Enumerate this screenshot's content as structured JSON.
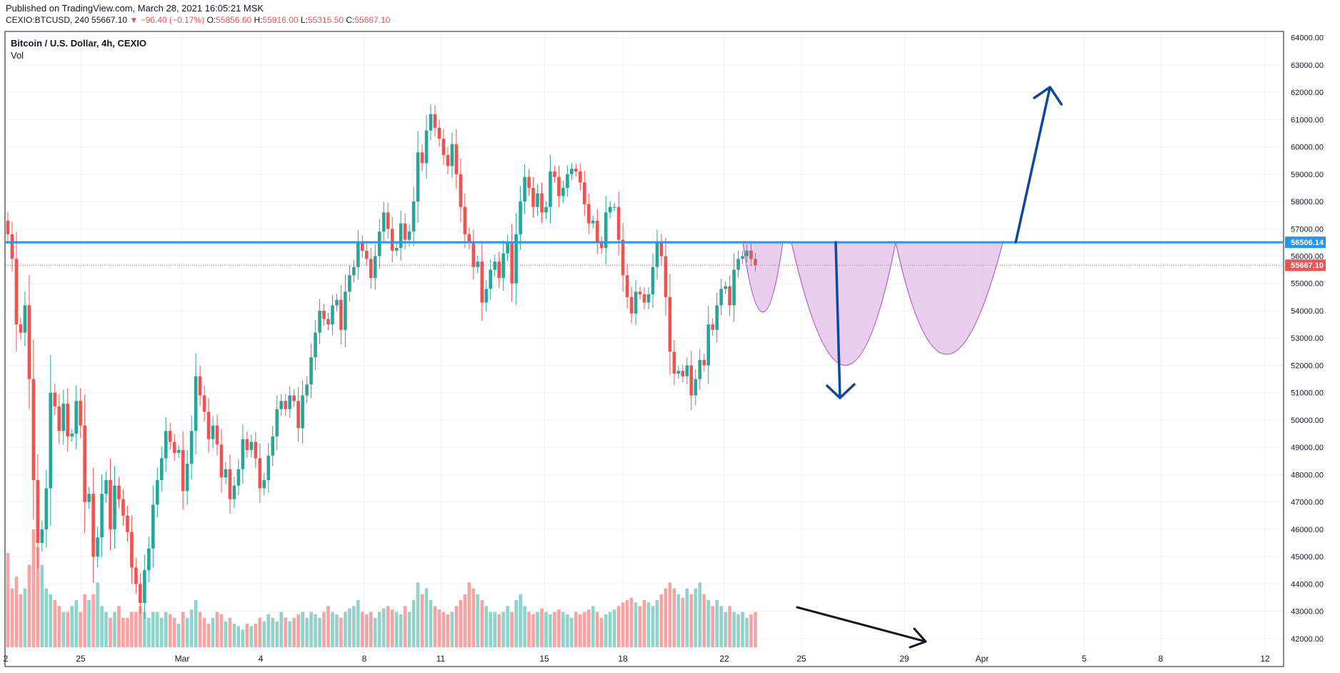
{
  "header": {
    "published": "Published on TradingView.com, March 28, 2021 16:05:21 MSK",
    "symbol": "CEXIO:BTCUSD, 240",
    "last": "55667.10",
    "change": "−96.40 (−0.17%)",
    "o_label": "O:",
    "o_value": "55856.60",
    "h_label": "H:",
    "h_value": "55916.00",
    "l_label": "L:",
    "l_value": "55315.50",
    "c_label": "C:",
    "c_value": "55667.10"
  },
  "legend": {
    "title": "Bitcoin / U.S. Dollar, 4h, CEXIO",
    "indicator": "Vol"
  },
  "colors": {
    "up": "#26a69a",
    "down": "#ef5350",
    "up_vol": "#8fd3cb",
    "down_vol": "#f5a3a3",
    "level": "#2196f3",
    "arrow": "#0d47a1",
    "pattern_fill": "#e1bee7",
    "pattern_stroke": "#ab47bc",
    "grid": "#f0f3fa"
  },
  "chart_data": {
    "type": "candlestick",
    "title": "Bitcoin / U.S. Dollar, 4h, CEXIO",
    "interval": "4h",
    "y_range": [
      41000,
      64200
    ],
    "y_ticks": [
      42000,
      43000,
      44000,
      45000,
      46000,
      47000,
      48000,
      49000,
      50000,
      51000,
      52000,
      53000,
      54000,
      55000,
      56000,
      57000,
      58000,
      59000,
      60000,
      61000,
      62000,
      63000,
      64000
    ],
    "x_ticks": [
      "2",
      "25",
      "Mar",
      "4",
      "8",
      "11",
      "15",
      "18",
      "22",
      "25",
      "29",
      "Apr",
      "5",
      "8",
      "12"
    ],
    "grid": true,
    "key_level": 56506.14,
    "last_price": 55667.1,
    "price_labels": [
      "56506.14",
      "55667.10"
    ],
    "candles_close": [
      56800,
      55900,
      53500,
      53200,
      54200,
      51500,
      47800,
      45500,
      46000,
      47500,
      51000,
      50500,
      49600,
      50600,
      49400,
      49500,
      50700,
      49800,
      47000,
      47300,
      45000,
      45700,
      47300,
      47800,
      46000,
      47600,
      47100,
      46500,
      45900,
      44600,
      44000,
      43300,
      44500,
      45300,
      46900,
      47800,
      48600,
      49600,
      49200,
      48800,
      48900,
      47400,
      48400,
      49600,
      51600,
      50900,
      50300,
      49300,
      49800,
      49100,
      47900,
      48200,
      47100,
      47600,
      48200,
      49300,
      48900,
      49200,
      48600,
      47500,
      47800,
      48700,
      49400,
      50400,
      50700,
      50400,
      50900,
      50700,
      49700,
      50900,
      51300,
      52300,
      53200,
      54000,
      53700,
      53500,
      54200,
      54400,
      53300,
      54700,
      55300,
      55600,
      56500,
      56200,
      55900,
      55200,
      56000,
      56900,
      57600,
      57000,
      56200,
      56300,
      57200,
      56600,
      56900,
      58000,
      59800,
      59400,
      60600,
      61200,
      60700,
      60300,
      59700,
      59300,
      60100,
      59000,
      57800,
      56800,
      56500,
      55600,
      55800,
      54300,
      54800,
      55500,
      55800,
      55200,
      56100,
      56500,
      55000,
      56800,
      58000,
      58900,
      58500,
      57800,
      58300,
      57600,
      57800,
      59100,
      58900,
      58200,
      58500,
      59000,
      59200,
      59100,
      58700,
      57900,
      57200,
      57300,
      56500,
      56300,
      57600,
      57800,
      57800,
      56600,
      55300,
      54500,
      53900,
      54700,
      54600,
      54300,
      54600,
      55600,
      56500,
      56000,
      54500,
      52500,
      51700,
      51800,
      51600,
      52000,
      50900,
      51500,
      52200,
      52000,
      53500,
      53300,
      54200,
      54800,
      54900,
      54200,
      55500,
      55900,
      56000,
      56200,
      55900,
      55667
    ],
    "volume_relative": [
      0.8,
      0.5,
      0.6,
      0.45,
      0.5,
      0.7,
      1.0,
      0.85,
      0.7,
      0.5,
      0.45,
      0.4,
      0.35,
      0.3,
      0.3,
      0.35,
      0.4,
      0.3,
      0.45,
      0.4,
      0.45,
      0.55,
      0.35,
      0.3,
      0.25,
      0.3,
      0.35,
      0.25,
      0.25,
      0.3,
      0.3,
      0.35,
      0.3,
      0.25,
      0.3,
      0.3,
      0.25,
      0.3,
      0.28,
      0.25,
      0.2,
      0.3,
      0.25,
      0.32,
      0.4,
      0.3,
      0.25,
      0.2,
      0.25,
      0.3,
      0.28,
      0.22,
      0.25,
      0.2,
      0.18,
      0.15,
      0.2,
      0.18,
      0.2,
      0.25,
      0.22,
      0.28,
      0.25,
      0.22,
      0.3,
      0.25,
      0.22,
      0.25,
      0.28,
      0.3,
      0.25,
      0.3,
      0.28,
      0.25,
      0.3,
      0.35,
      0.3,
      0.28,
      0.25,
      0.3,
      0.33,
      0.35,
      0.4,
      0.3,
      0.28,
      0.3,
      0.25,
      0.3,
      0.33,
      0.35,
      0.32,
      0.3,
      0.28,
      0.35,
      0.3,
      0.4,
      0.55,
      0.45,
      0.5,
      0.4,
      0.35,
      0.32,
      0.3,
      0.28,
      0.3,
      0.35,
      0.4,
      0.45,
      0.55,
      0.5,
      0.45,
      0.4,
      0.35,
      0.3,
      0.3,
      0.28,
      0.3,
      0.35,
      0.3,
      0.4,
      0.45,
      0.35,
      0.3,
      0.28,
      0.3,
      0.33,
      0.3,
      0.28,
      0.3,
      0.32,
      0.3,
      0.28,
      0.25,
      0.3,
      0.28,
      0.3,
      0.32,
      0.35,
      0.3,
      0.25,
      0.28,
      0.3,
      0.32,
      0.35,
      0.38,
      0.4,
      0.42,
      0.38,
      0.35,
      0.4,
      0.38,
      0.35,
      0.4,
      0.45,
      0.5,
      0.55,
      0.5,
      0.45,
      0.42,
      0.5,
      0.45,
      0.5,
      0.55,
      0.45,
      0.4,
      0.35,
      0.4,
      0.35,
      0.3,
      0.35,
      0.3,
      0.28,
      0.3,
      0.25,
      0.28,
      0.3
    ]
  }
}
